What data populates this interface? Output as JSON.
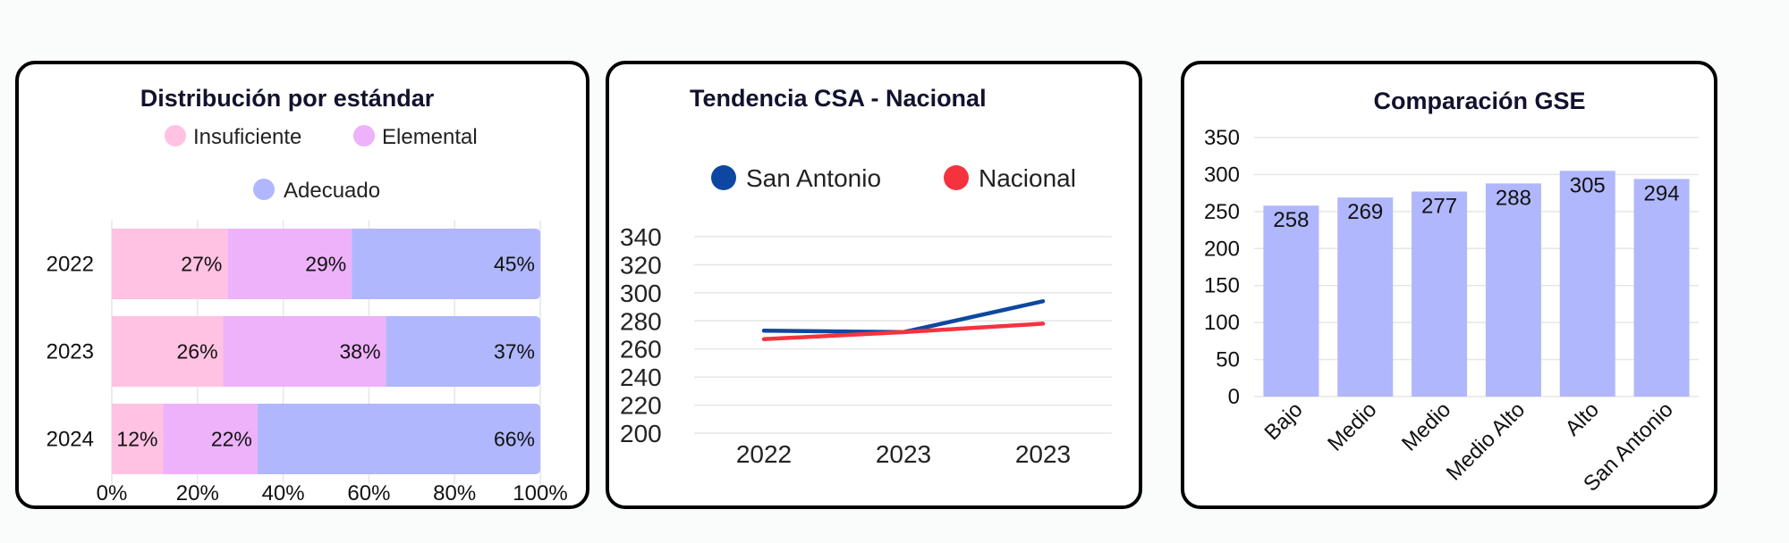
{
  "chart_data": [
    {
      "type": "bar",
      "orientation": "horizontal",
      "stacked": true,
      "title": "Distribución por estándar",
      "categories": [
        "2022",
        "2023",
        "2024"
      ],
      "series": [
        {
          "name": "Insuficiente",
          "values": [
            27,
            26,
            12
          ],
          "labels": [
            "27%",
            "26%",
            "12%"
          ],
          "color": "#ffc2e2"
        },
        {
          "name": "Elemental",
          "values": [
            29,
            38,
            22
          ],
          "labels": [
            "29%",
            "38%",
            "22%"
          ],
          "color": "#edb2fa"
        },
        {
          "name": "Adecuado",
          "values": [
            45,
            37,
            66
          ],
          "labels": [
            "45%",
            "37%",
            "66%"
          ],
          "color": "#b0b7fc"
        }
      ],
      "x_ticks": [
        "0%",
        "20%",
        "40%",
        "60%",
        "80%",
        "100%"
      ],
      "xlim": [
        0,
        100
      ],
      "legend": "top",
      "grid": true
    },
    {
      "type": "line",
      "title": "Tendencia CSA - Nacional",
      "categories": [
        "2022",
        "2023",
        "2023"
      ],
      "series": [
        {
          "name": "San Antonio",
          "values": [
            273,
            272,
            294
          ],
          "color": "#0d47a1"
        },
        {
          "name": "Nacional",
          "values": [
            267,
            272,
            278
          ],
          "color": "#f5333f"
        }
      ],
      "y_ticks": [
        "200",
        "220",
        "240",
        "260",
        "280",
        "300",
        "320",
        "340"
      ],
      "ylim": [
        200,
        340
      ],
      "legend": "top",
      "grid": true
    },
    {
      "type": "bar",
      "title": "Comparación GSE",
      "categories": [
        "Bajo",
        "Medio",
        "Medio",
        "Medio Alto",
        "Alto",
        "San Antonio"
      ],
      "values": [
        258,
        269,
        277,
        288,
        305,
        294
      ],
      "value_labels": [
        "258",
        "269",
        "277",
        "288",
        "305",
        "294"
      ],
      "color": "#b0b7fc",
      "y_ticks": [
        "0",
        "50",
        "100",
        "150",
        "200",
        "250",
        "300",
        "350"
      ],
      "ylim": [
        0,
        350
      ],
      "grid": true
    }
  ]
}
